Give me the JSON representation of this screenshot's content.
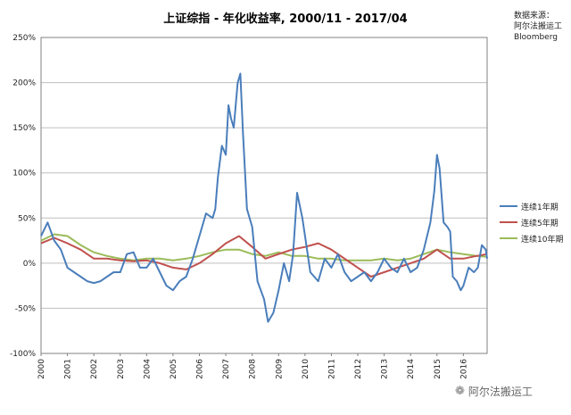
{
  "chart_data": {
    "type": "line",
    "title": "上证综指 - 年化收益率, 2000/11 - 2017/04",
    "xlabel": "",
    "ylabel": "",
    "x_tick_labels": [
      "2000",
      "2001",
      "2002",
      "2003",
      "2004",
      "2005",
      "2006",
      "2007",
      "2008",
      "2009",
      "2010",
      "2011",
      "2012",
      "2013",
      "2014",
      "2015",
      "2016"
    ],
    "y_tick_labels": [
      "250%",
      "200%",
      "150%",
      "100%",
      "50%",
      "0%",
      "-50%",
      "-100%"
    ],
    "ylim": [
      -100,
      250
    ],
    "xlim": [
      2000.0,
      2016.9
    ],
    "grid": true,
    "legend_position": "right",
    "series": [
      {
        "name": "连续1年期",
        "color": "#4A7EBB",
        "points": [
          [
            2000.0,
            30
          ],
          [
            2000.25,
            45
          ],
          [
            2000.5,
            25
          ],
          [
            2000.75,
            15
          ],
          [
            2001.0,
            -5
          ],
          [
            2001.25,
            -10
          ],
          [
            2001.5,
            -15
          ],
          [
            2001.75,
            -20
          ],
          [
            2002.0,
            -22
          ],
          [
            2002.25,
            -20
          ],
          [
            2002.5,
            -15
          ],
          [
            2002.75,
            -10
          ],
          [
            2003.0,
            -10
          ],
          [
            2003.25,
            10
          ],
          [
            2003.5,
            12
          ],
          [
            2003.75,
            -5
          ],
          [
            2004.0,
            -5
          ],
          [
            2004.25,
            5
          ],
          [
            2004.5,
            -10
          ],
          [
            2004.75,
            -25
          ],
          [
            2005.0,
            -30
          ],
          [
            2005.25,
            -20
          ],
          [
            2005.5,
            -15
          ],
          [
            2005.75,
            5
          ],
          [
            2006.0,
            30
          ],
          [
            2006.25,
            55
          ],
          [
            2006.5,
            50
          ],
          [
            2006.6,
            60
          ],
          [
            2006.7,
            95
          ],
          [
            2006.85,
            130
          ],
          [
            2007.0,
            120
          ],
          [
            2007.1,
            175
          ],
          [
            2007.2,
            160
          ],
          [
            2007.3,
            150
          ],
          [
            2007.45,
            200
          ],
          [
            2007.55,
            210
          ],
          [
            2007.65,
            145
          ],
          [
            2007.8,
            60
          ],
          [
            2008.0,
            40
          ],
          [
            2008.2,
            -20
          ],
          [
            2008.45,
            -40
          ],
          [
            2008.6,
            -65
          ],
          [
            2008.8,
            -55
          ],
          [
            2009.0,
            -30
          ],
          [
            2009.2,
            0
          ],
          [
            2009.4,
            -20
          ],
          [
            2009.55,
            10
          ],
          [
            2009.7,
            78
          ],
          [
            2009.9,
            50
          ],
          [
            2010.0,
            30
          ],
          [
            2010.2,
            -10
          ],
          [
            2010.5,
            -20
          ],
          [
            2010.75,
            5
          ],
          [
            2011.0,
            -5
          ],
          [
            2011.25,
            10
          ],
          [
            2011.5,
            -10
          ],
          [
            2011.75,
            -20
          ],
          [
            2012.0,
            -15
          ],
          [
            2012.25,
            -10
          ],
          [
            2012.5,
            -20
          ],
          [
            2012.75,
            -10
          ],
          [
            2013.0,
            5
          ],
          [
            2013.25,
            -5
          ],
          [
            2013.5,
            -10
          ],
          [
            2013.75,
            5
          ],
          [
            2014.0,
            -10
          ],
          [
            2014.25,
            -5
          ],
          [
            2014.5,
            15
          ],
          [
            2014.75,
            45
          ],
          [
            2014.9,
            80
          ],
          [
            2015.0,
            120
          ],
          [
            2015.1,
            105
          ],
          [
            2015.25,
            45
          ],
          [
            2015.4,
            40
          ],
          [
            2015.5,
            35
          ],
          [
            2015.6,
            -15
          ],
          [
            2015.75,
            -20
          ],
          [
            2015.9,
            -30
          ],
          [
            2016.0,
            -25
          ],
          [
            2016.2,
            -5
          ],
          [
            2016.4,
            -10
          ],
          [
            2016.55,
            -5
          ],
          [
            2016.7,
            20
          ],
          [
            2016.85,
            15
          ],
          [
            2016.9,
            5
          ]
        ]
      },
      {
        "name": "连续5年期",
        "color": "#C0504D",
        "points": [
          [
            2000.0,
            22
          ],
          [
            2000.5,
            28
          ],
          [
            2001.0,
            22
          ],
          [
            2001.5,
            15
          ],
          [
            2002.0,
            5
          ],
          [
            2002.5,
            5
          ],
          [
            2003.0,
            3
          ],
          [
            2003.5,
            2
          ],
          [
            2004.0,
            3
          ],
          [
            2004.5,
            0
          ],
          [
            2005.0,
            -5
          ],
          [
            2005.5,
            -7
          ],
          [
            2006.0,
            0
          ],
          [
            2006.5,
            10
          ],
          [
            2007.0,
            22
          ],
          [
            2007.5,
            30
          ],
          [
            2008.0,
            18
          ],
          [
            2008.5,
            5
          ],
          [
            2009.0,
            10
          ],
          [
            2009.5,
            15
          ],
          [
            2010.0,
            18
          ],
          [
            2010.5,
            22
          ],
          [
            2011.0,
            15
          ],
          [
            2011.5,
            5
          ],
          [
            2012.0,
            -5
          ],
          [
            2012.5,
            -15
          ],
          [
            2013.0,
            -10
          ],
          [
            2013.5,
            -5
          ],
          [
            2014.0,
            0
          ],
          [
            2014.5,
            5
          ],
          [
            2015.0,
            15
          ],
          [
            2015.5,
            5
          ],
          [
            2016.0,
            5
          ],
          [
            2016.5,
            8
          ],
          [
            2016.9,
            10
          ]
        ]
      },
      {
        "name": "连续10年期",
        "color": "#9BBB59",
        "points": [
          [
            2000.0,
            25
          ],
          [
            2000.5,
            32
          ],
          [
            2001.0,
            30
          ],
          [
            2001.5,
            20
          ],
          [
            2002.0,
            12
          ],
          [
            2002.5,
            8
          ],
          [
            2003.0,
            5
          ],
          [
            2003.5,
            3
          ],
          [
            2004.0,
            5
          ],
          [
            2004.5,
            5
          ],
          [
            2005.0,
            3
          ],
          [
            2005.5,
            5
          ],
          [
            2006.0,
            8
          ],
          [
            2006.5,
            12
          ],
          [
            2007.0,
            15
          ],
          [
            2007.5,
            15
          ],
          [
            2008.0,
            10
          ],
          [
            2008.5,
            8
          ],
          [
            2009.0,
            12
          ],
          [
            2009.5,
            8
          ],
          [
            2010.0,
            8
          ],
          [
            2010.5,
            5
          ],
          [
            2011.0,
            5
          ],
          [
            2011.5,
            3
          ],
          [
            2012.0,
            3
          ],
          [
            2012.5,
            3
          ],
          [
            2013.0,
            5
          ],
          [
            2013.5,
            3
          ],
          [
            2014.0,
            5
          ],
          [
            2014.5,
            10
          ],
          [
            2015.0,
            15
          ],
          [
            2015.5,
            12
          ],
          [
            2016.0,
            10
          ],
          [
            2016.5,
            8
          ],
          [
            2016.9,
            7
          ]
        ]
      }
    ]
  },
  "source": {
    "line1": "数据来源：",
    "line2": "阿尔法搬运工",
    "line3": "Bloomberg"
  },
  "watermark": {
    "text": "阿尔法搬运工",
    "icon": "wechat-icon"
  }
}
